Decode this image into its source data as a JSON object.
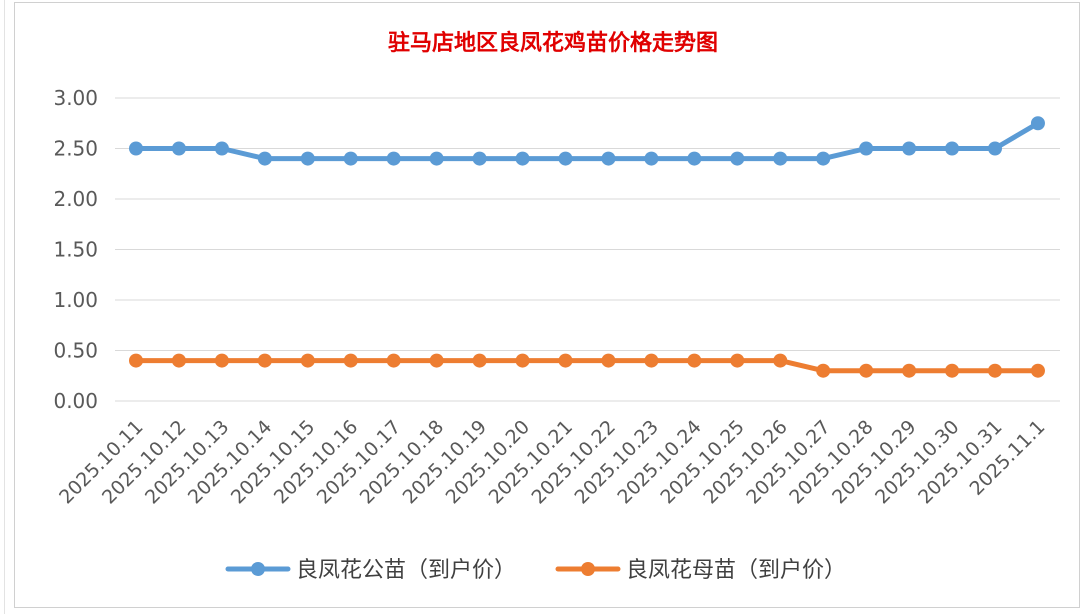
{
  "chart_data": {
    "type": "line",
    "title": "驻马店地区良凤花鸡苗价格走势图",
    "categories": [
      "2025.10.11",
      "2025.10.12",
      "2025.10.13",
      "2025.10.14",
      "2025.10.15",
      "2025.10.16",
      "2025.10.17",
      "2025.10.18",
      "2025.10.19",
      "2025.10.20",
      "2025.10.21",
      "2025.10.22",
      "2025.10.23",
      "2025.10.24",
      "2025.10.25",
      "2025.10.26",
      "2025.10.27",
      "2025.10.28",
      "2025.10.29",
      "2025.10.30",
      "2025.10.31",
      "2025.11.1"
    ],
    "yticks": [
      "0.00",
      "0.50",
      "1.00",
      "1.50",
      "2.00",
      "2.50",
      "3.00"
    ],
    "ylim": [
      0,
      3
    ],
    "grid": true,
    "legend_position": "bottom",
    "series": [
      {
        "name": "良凤花公苗（到户价）",
        "color": "#5b9bd5",
        "values": [
          2.5,
          2.5,
          2.5,
          2.4,
          2.4,
          2.4,
          2.4,
          2.4,
          2.4,
          2.4,
          2.4,
          2.4,
          2.4,
          2.4,
          2.4,
          2.4,
          2.4,
          2.5,
          2.5,
          2.5,
          2.5,
          2.75
        ]
      },
      {
        "name": "良凤花母苗（到户价）",
        "color": "#ed7d31",
        "values": [
          0.4,
          0.4,
          0.4,
          0.4,
          0.4,
          0.4,
          0.4,
          0.4,
          0.4,
          0.4,
          0.4,
          0.4,
          0.4,
          0.4,
          0.4,
          0.4,
          0.3,
          0.3,
          0.3,
          0.3,
          0.3,
          0.3
        ]
      }
    ],
    "title_color": "#e00000"
  }
}
